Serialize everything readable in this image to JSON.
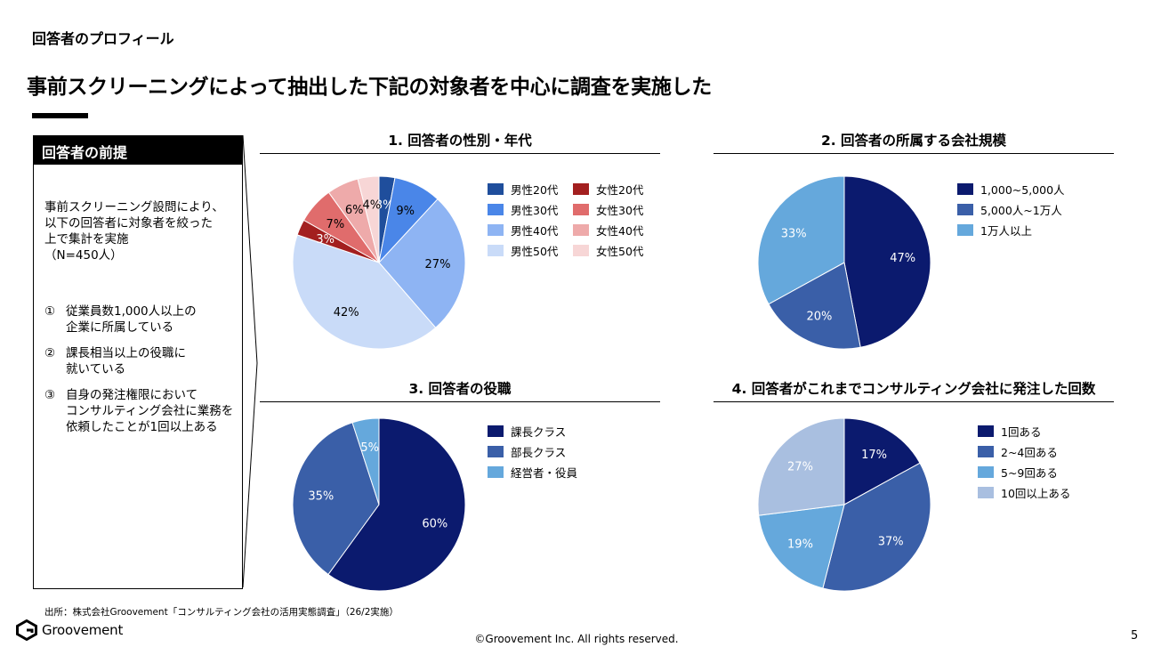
{
  "page": {
    "section_label": "回答者のプロフィール",
    "headline": "事前スクリーニングによって抽出した下記の対象者を中心に調査を実施した",
    "source": "出所：株式会社Groovement「コンサルティング会社の活用実態調査」（26/2実施）",
    "logo_text": "Groovement",
    "copyright": "©Groovement Inc. All rights reserved.",
    "page_number": "5"
  },
  "premise": {
    "header": "回答者の前提",
    "intro_lines": [
      "事前スクリーニング設問により、",
      "以下の回答者に対象者を絞った",
      "上で集計を実施",
      "（N=450人）"
    ],
    "conditions": [
      {
        "num": "①",
        "lines": [
          "従業員数1,000人以上の",
          "企業に所属している"
        ]
      },
      {
        "num": "②",
        "lines": [
          "課長相当以上の役職に",
          "就いている"
        ]
      },
      {
        "num": "③",
        "lines": [
          "自身の発注権限において",
          "コンサルティング会社に業務を",
          "依頼したことが1回以上ある"
        ]
      }
    ]
  },
  "chart_data": [
    {
      "type": "pie",
      "title": "1. 回答者の性別・年代",
      "categories": [
        "男性20代",
        "男性30代",
        "男性40代",
        "男性50代",
        "女性20代",
        "女性30代",
        "女性40代",
        "女性50代"
      ],
      "values": [
        3,
        9,
        27,
        42,
        3,
        7,
        6,
        4
      ],
      "labels": [
        "3%",
        "9%",
        "27%",
        "42%",
        "3%",
        "7%",
        "6%",
        "4%"
      ],
      "colors": [
        "#1f4e9c",
        "#4a86e8",
        "#8eb4f3",
        "#c9dbf8",
        "#a31f1f",
        "#e06c6c",
        "#eeaaaa",
        "#f7d6d6"
      ],
      "label_colors": [
        "#ffffff",
        "#000000",
        "#000000",
        "#000000",
        "#ffffff",
        "#000000",
        "#000000",
        "#000000"
      ],
      "legend_order": [
        0,
        4,
        1,
        5,
        2,
        6,
        3,
        7
      ]
    },
    {
      "type": "pie",
      "title": "2. 回答者の所属する会社規模",
      "categories": [
        "1,000~5,000人",
        "5,000人~1万人",
        "1万人以上"
      ],
      "values": [
        47,
        20,
        33
      ],
      "labels": [
        "47%",
        "20%",
        "33%"
      ],
      "colors": [
        "#0b1a6e",
        "#3a5fa8",
        "#65a8dc"
      ],
      "label_colors": [
        "#ffffff",
        "#ffffff",
        "#ffffff"
      ]
    },
    {
      "type": "pie",
      "title": "3. 回答者の役職",
      "categories": [
        "課長クラス",
        "部長クラス",
        "経営者・役員"
      ],
      "values": [
        60,
        35,
        5
      ],
      "labels": [
        "60%",
        "35%",
        "5%"
      ],
      "colors": [
        "#0b1a6e",
        "#3a5fa8",
        "#65a8dc"
      ],
      "label_colors": [
        "#ffffff",
        "#ffffff",
        "#ffffff"
      ]
    },
    {
      "type": "pie",
      "title": "4. 回答者がこれまでコンサルティング会社に発注した回数",
      "categories": [
        "1回ある",
        "2~4回ある",
        "5~9回ある",
        "10回以上ある"
      ],
      "values": [
        17,
        37,
        19,
        27
      ],
      "labels": [
        "17%",
        "37%",
        "19%",
        "27%"
      ],
      "colors": [
        "#0b1a6e",
        "#3a5fa8",
        "#65a8dc",
        "#a9bfe0"
      ],
      "label_colors": [
        "#ffffff",
        "#ffffff",
        "#ffffff",
        "#ffffff"
      ]
    }
  ]
}
